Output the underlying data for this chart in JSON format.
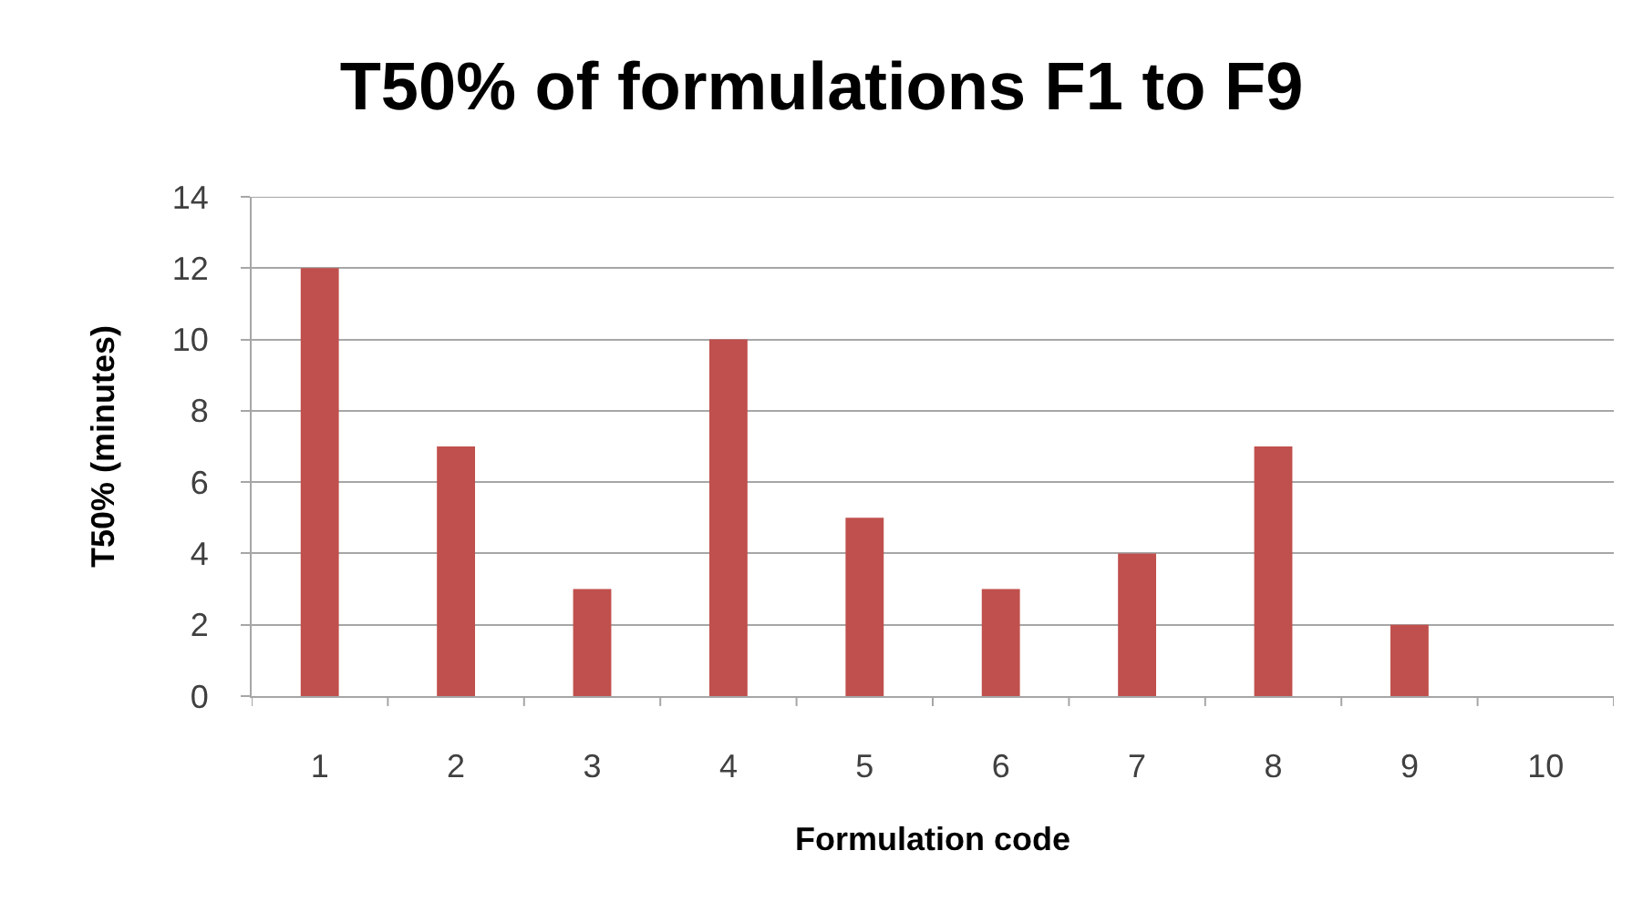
{
  "chart_data": {
    "type": "bar",
    "title": "T50% of formulations F1 to F9",
    "xlabel": "Formulation code",
    "ylabel": "T50% (minutes)",
    "categories": [
      "1",
      "2",
      "3",
      "4",
      "5",
      "6",
      "7",
      "8",
      "9",
      "10"
    ],
    "series": [
      {
        "color": "#c0504d",
        "values": [
          12,
          7,
          3,
          10,
          5,
          3,
          4,
          7,
          2,
          null
        ]
      }
    ],
    "ylim": [
      0,
      14
    ],
    "yticks": [
      0,
      2,
      4,
      6,
      8,
      10,
      12,
      14
    ],
    "grid": "y"
  }
}
